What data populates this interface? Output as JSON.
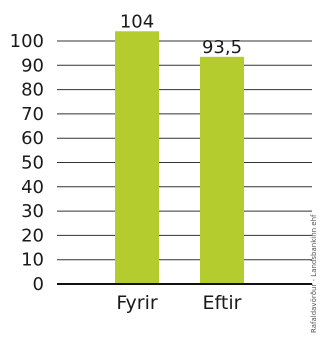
{
  "chart_data": {
    "type": "bar",
    "categories": [
      "Fyrir",
      "Eftir"
    ],
    "values": [
      104,
      93.5
    ],
    "data_labels": [
      "104",
      "93,5"
    ],
    "ylim": [
      0,
      100
    ],
    "yticks": [
      0,
      10,
      20,
      30,
      40,
      50,
      60,
      70,
      80,
      90,
      100
    ],
    "grid": true,
    "bar_color": "#b5cc2e",
    "title": "",
    "xlabel": "",
    "ylabel": "",
    "source_note": "Rafaldavörður - Landsbankinn ehf"
  }
}
